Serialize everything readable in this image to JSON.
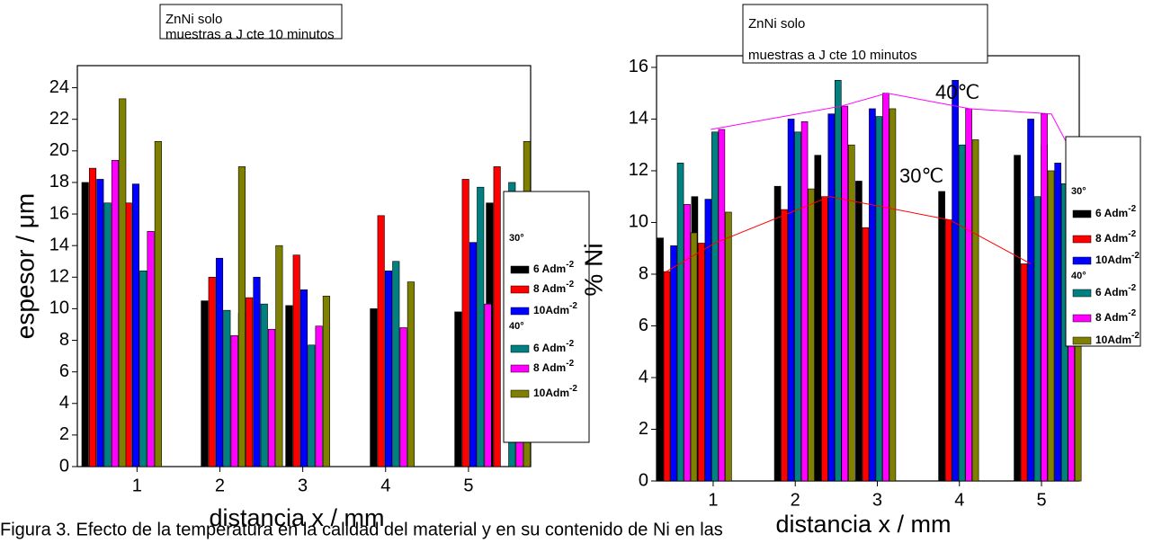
{
  "chart_data": [
    {
      "type": "bar",
      "y_label": "espesor / μm",
      "x_label": "distancia x / mm",
      "annotation_lines": [
        "ZnNi solo",
        "muestras a J cte 10 minutos"
      ],
      "x": [
        0.6,
        1.03,
        2.04,
        2.49,
        3.06,
        4.08,
        5.1,
        5.48
      ],
      "xlim": [
        0.28,
        5.75
      ],
      "xticks": [
        1,
        2,
        3,
        4,
        5
      ],
      "ylim": [
        0,
        25.4
      ],
      "yticks": [
        0,
        2,
        4,
        6,
        8,
        10,
        12,
        14,
        16,
        18,
        20,
        22,
        24
      ],
      "legend_groups": [
        "30°",
        "40°"
      ],
      "legend_exponent": "-2",
      "series": [
        {
          "name": "6 Adm",
          "color": "#000000",
          "values": [
            18,
            null,
            10.5,
            9.7,
            10.2,
            10,
            9.8,
            16.7
          ]
        },
        {
          "name": "8 Adm",
          "color": "#ff0000",
          "values": [
            18.9,
            16.7,
            12,
            10.7,
            13.4,
            15.9,
            18.2,
            19
          ]
        },
        {
          "name": "10Adm",
          "color": "#0000ff",
          "values": [
            18.2,
            17.9,
            13.2,
            12,
            11.2,
            12.4,
            14.2,
            null
          ]
        },
        {
          "name": "6 Adm",
          "color": "#008080",
          "values": [
            16.7,
            12.4,
            9.9,
            10.3,
            7.7,
            13,
            17.7,
            18
          ]
        },
        {
          "name": "8 Adm",
          "color": "#ff00ff",
          "values": [
            19.4,
            14.9,
            8.3,
            8.7,
            8.9,
            8.8,
            10.3,
            11.6
          ]
        },
        {
          "name": "10Adm",
          "color": "#808000",
          "values": [
            23.3,
            20.6,
            19,
            14,
            10.8,
            11.7,
            null,
            20.6
          ]
        }
      ]
    },
    {
      "type": "bar",
      "y_label": "% Ni",
      "x_label": "distancia x / mm",
      "annotation_lines": [
        "ZnNi solo",
        "muestras a J cte 10 minutos"
      ],
      "labels": [
        "40℃",
        "30℃"
      ],
      "x": [
        0.56,
        0.98,
        1.99,
        2.48,
        2.98,
        3.99,
        4.91,
        5.24
      ],
      "xlim": [
        0.31,
        5.46
      ],
      "xticks": [
        1,
        2,
        3,
        4,
        5
      ],
      "ylim": [
        0,
        16.45
      ],
      "yticks": [
        0,
        2,
        4,
        6,
        8,
        10,
        12,
        14,
        16
      ],
      "legend_groups": [
        "30°",
        "40°"
      ],
      "legend_exponent": "-2",
      "series": [
        {
          "name": "6 Adm",
          "color": "#000000",
          "values": [
            9.4,
            11,
            11.4,
            12.6,
            11.6,
            11.2,
            12.6,
            13
          ]
        },
        {
          "name": "8 Adm",
          "color": "#ff0000",
          "values": [
            8.1,
            9.2,
            10.5,
            11,
            9.8,
            10.1,
            8.4,
            null
          ]
        },
        {
          "name": "10Adm",
          "color": "#0000ff",
          "values": [
            9.1,
            10.9,
            14,
            14.2,
            14.4,
            15.5,
            14,
            12.3
          ]
        },
        {
          "name": "6 Adm",
          "color": "#008080",
          "values": [
            12.3,
            13.5,
            13.5,
            15.5,
            14.1,
            13,
            11,
            11.5
          ]
        },
        {
          "name": "8 Adm",
          "color": "#ff00ff",
          "values": [
            10.7,
            13.6,
            13.9,
            14.5,
            15,
            14.4,
            14.2,
            13
          ]
        },
        {
          "name": "10Adm",
          "color": "#808000",
          "values": [
            9.6,
            10.4,
            11.3,
            13,
            14.4,
            13.2,
            12,
            11
          ]
        }
      ],
      "overlay_lines": [
        {
          "color": "#ff0000",
          "x": [
            0.43,
            1.02,
            2.42,
            3.88,
            4.87
          ],
          "values": [
            8.1,
            9.2,
            11,
            10.1,
            8.4
          ]
        },
        {
          "color": "#ff00ff",
          "x": [
            0.97,
            2.56,
            3.12,
            4.13,
            5.12,
            5.32
          ],
          "values": [
            13.6,
            14.5,
            15,
            14.4,
            14.2,
            13
          ]
        }
      ]
    }
  ],
  "caption": "Figura 3.  Efecto de la temperatura en la calidad del material y en su contenido de Ni en las"
}
